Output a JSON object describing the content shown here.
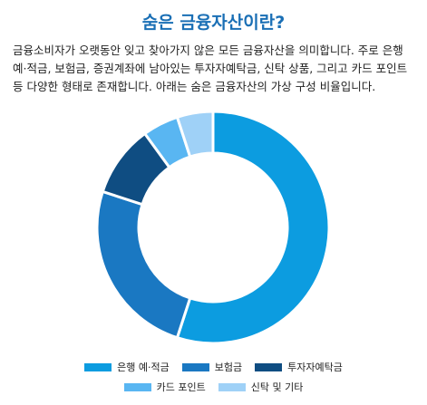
{
  "title": "숨은 금융자산이란?",
  "description": "금융소비자가 오랫동안 잊고 찾아가지 않은 모든 금융자산을 의미합니다. 주로 은행 예·적금, 보험금, 증권계좌에 남아있는 투자자예탁금, 신탁 상품, 그리고 카드 포인트 등 다양한 형태로 존재합니다. 아래는 숨은 금융자산의 가상 구성 비율입니다.",
  "chart_data": {
    "type": "pie",
    "donut": true,
    "title": "",
    "legend_position": "bottom",
    "categories": [
      "은행 예·적금",
      "보험금",
      "투자자예탁금",
      "카드 포인트",
      "신탁 및 기타"
    ],
    "values": [
      55,
      25,
      10,
      5,
      5
    ],
    "colors": [
      "#0c9ce0",
      "#1a78c2",
      "#0f4d82",
      "#59b6f2",
      "#9fd1f7"
    ]
  }
}
